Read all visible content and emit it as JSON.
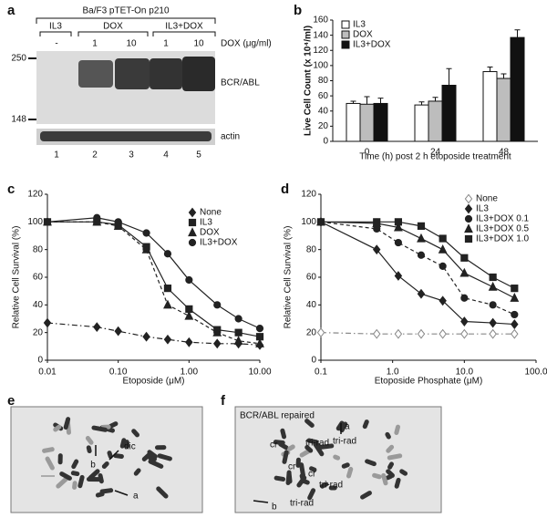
{
  "panel_labels": [
    "a",
    "b",
    "c",
    "d",
    "e",
    "f"
  ],
  "blot": {
    "cell_line": "Ba/F3 pTET-On p210",
    "groups": [
      "IL3",
      "DOX",
      "IL3+DOX"
    ],
    "doses": [
      "-",
      "1",
      "10",
      "1",
      "10"
    ],
    "dose_label": "DOX (μg/ml)",
    "markers": [
      "250",
      "148"
    ],
    "bands": [
      "BCR/ABL",
      "actin"
    ],
    "lanes": [
      "1",
      "2",
      "3",
      "4",
      "5"
    ]
  },
  "chart_data": [
    {
      "type": "bar",
      "y_label": "Live Cell Count (x 10⁴/ml)",
      "x_label": "Time (h) post 2 h etoposide treatment",
      "categories": [
        "0",
        "24",
        "48"
      ],
      "series": [
        {
          "name": "IL3",
          "color": "#ffffff",
          "values": [
            50,
            48,
            92
          ],
          "errors": [
            3,
            4,
            6
          ]
        },
        {
          "name": "DOX",
          "color": "#bdbdbd",
          "values": [
            49,
            53,
            83
          ],
          "errors": [
            10,
            5,
            6
          ]
        },
        {
          "name": "IL3+DOX",
          "color": "#111111",
          "values": [
            50,
            74,
            137
          ],
          "errors": [
            7,
            22,
            10
          ]
        }
      ],
      "ylim": [
        0,
        160
      ],
      "yticks": [
        0,
        20,
        40,
        60,
        80,
        100,
        120,
        140,
        160
      ],
      "legend": "upper left"
    },
    {
      "type": "line",
      "x_label": "Etoposide (μM)",
      "y_label": "Relative Cell Survival (%)",
      "xscale": "log",
      "x": [
        0.01,
        0.05,
        0.1,
        0.25,
        0.5,
        1,
        2.5,
        5,
        10
      ],
      "series": [
        {
          "name": "None",
          "color": "#222222",
          "marker": "diamond",
          "filled": true,
          "dash": "dashdot",
          "values": [
            27,
            24,
            21,
            17,
            15,
            13,
            12,
            12,
            11
          ]
        },
        {
          "name": "IL3",
          "color": "#222222",
          "marker": "square",
          "filled": true,
          "dash": "solid",
          "values": [
            100,
            100,
            98,
            82,
            52,
            37,
            22,
            20,
            17
          ]
        },
        {
          "name": "DOX",
          "color": "#222222",
          "marker": "triangle",
          "filled": true,
          "dash": "dashed",
          "values": [
            100,
            100,
            97,
            80,
            40,
            32,
            20,
            14,
            12
          ]
        },
        {
          "name": "IL3+DOX",
          "color": "#222222",
          "marker": "circle",
          "filled": true,
          "dash": "solid",
          "values": [
            100,
            103,
            100,
            92,
            77,
            58,
            40,
            30,
            23
          ]
        }
      ],
      "xlim": [
        0.01,
        10
      ],
      "xticks": [
        0.01,
        {
          "value": 0.1,
          "label": "0.10"
        },
        {
          "value": 1,
          "label": "1.00"
        },
        {
          "value": 10,
          "label": "10.00"
        }
      ],
      "ylim": [
        0,
        120
      ],
      "yticks": [
        0,
        20,
        40,
        60,
        80,
        100,
        120
      ],
      "legend": "right"
    },
    {
      "type": "line",
      "x_label": "Etoposide Phosphate (μM)",
      "y_label": "Relative Cell Survival (%)",
      "xscale": "log",
      "x": [
        0.1,
        0.6,
        1.2,
        2.5,
        5,
        10,
        25,
        50
      ],
      "series": [
        {
          "name": "None",
          "color": "#888888",
          "marker": "diamond",
          "filled": false,
          "dash": "dashdot",
          "values": [
            20,
            19,
            19,
            19,
            19,
            19,
            19,
            19
          ]
        },
        {
          "name": "IL3",
          "color": "#222222",
          "marker": "diamond",
          "filled": true,
          "dash": "solid",
          "values": [
            100,
            80,
            61,
            48,
            43,
            28,
            27,
            26
          ]
        },
        {
          "name": "IL3+DOX 0.1",
          "color": "#222222",
          "marker": "circle",
          "filled": true,
          "dash": "dashed",
          "values": [
            100,
            95,
            85,
            76,
            68,
            45,
            40,
            33
          ]
        },
        {
          "name": "IL3+DOX 0.5",
          "color": "#222222",
          "marker": "triangle",
          "filled": true,
          "dash": "solid",
          "values": [
            100,
            99,
            96,
            88,
            80,
            63,
            53,
            45
          ]
        },
        {
          "name": "IL3+DOX 1.0",
          "color": "#222222",
          "marker": "square",
          "filled": true,
          "dash": "solid",
          "values": [
            100,
            100,
            100,
            97,
            88,
            74,
            60,
            52
          ]
        }
      ],
      "xlim": [
        0.1,
        100
      ],
      "xticks": [
        0.1,
        {
          "value": 1,
          "label": "1.0"
        },
        {
          "value": 10,
          "label": "10.0"
        },
        {
          "value": 100,
          "label": "100.0"
        }
      ],
      "ylim": [
        0,
        120
      ],
      "yticks": [
        0,
        20,
        40,
        60,
        80,
        100,
        120
      ],
      "legend": "upper right"
    }
  ],
  "micrographs": [
    {
      "labels": [
        "dic",
        "b",
        "a"
      ]
    },
    {
      "title": "BCR/ABL repaired",
      "labels": [
        "cr",
        "cr",
        "cr",
        "tri-rad",
        "tri-rad",
        "tri-rad",
        "tri-rad",
        "a",
        "b"
      ]
    }
  ]
}
